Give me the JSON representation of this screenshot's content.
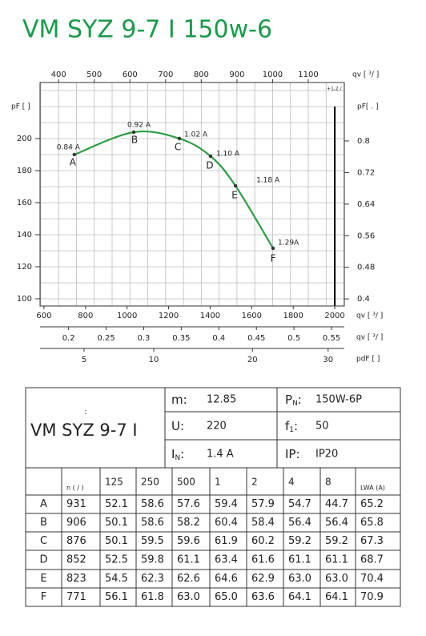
{
  "header": {
    "title": "VM SYZ 9-7 I 150w-6"
  },
  "chart_data": {
    "type": "line",
    "x": [
      746,
      1032,
      1252,
      1402,
      1522,
      1703
    ],
    "series": [
      {
        "name": "pF",
        "color": "#2e9e44",
        "values": [
          190,
          204,
          200,
          189,
          170.5,
          131.5
        ]
      }
    ],
    "point_labels": [
      "A",
      "B",
      "C",
      "D",
      "E",
      "F"
    ],
    "annotations": [
      "0.84 A",
      "0.92 A",
      "1.02 A",
      "1.10 A",
      "1.18 A",
      "1.29A"
    ],
    "xlim": [
      581,
      2046
    ],
    "xticks": [
      600,
      800,
      1000,
      1200,
      1400,
      1600,
      1800,
      2000
    ],
    "xlabel": "qv [ ³/ ]",
    "x2lim": [
      348,
      1201
    ],
    "x2ticks": [
      400,
      500,
      600,
      700,
      800,
      900,
      1000,
      1100
    ],
    "x2label": "qv [ ³/ ]",
    "x2grid": [
      350,
      400,
      450,
      500,
      550,
      600,
      650,
      700,
      750,
      800,
      850,
      900,
      950,
      1000,
      1050,
      1100,
      1150,
      1200
    ],
    "x3lim": [
      0.162,
      0.567
    ],
    "x3ticks": [
      0.2,
      0.25,
      0.3,
      0.35,
      0.4,
      0.45,
      0.5,
      0.55
    ],
    "x3label": "qv [ ³/ ]",
    "x4lim": [
      2.73,
      32.4
    ],
    "x4scale": "sqrt",
    "x4ticks": [
      5,
      10,
      20,
      30
    ],
    "x4label": "pdF [ ]",
    "ylim": [
      95.5,
      235
    ],
    "yticks": [
      100,
      120,
      140,
      160,
      180,
      200
    ],
    "ylabel": "pF [ ]",
    "ygrid": [
      100,
      110,
      120,
      130,
      140,
      150,
      160,
      170,
      180,
      190,
      200,
      210,
      220,
      230
    ],
    "y2lim": [
      0.382,
      0.948
    ],
    "y2ticks": [
      0.4,
      0.48,
      0.56,
      0.64,
      0.72,
      0.8
    ],
    "y2label": "pF[ . ]",
    "limit_x": 2000,
    "limit_note": "+1,2 /",
    "grid": true
  },
  "specs": {
    "name_note": ":",
    "name": "VM SYZ 9-7 I",
    "items": [
      {
        "label": "m",
        "sub": "",
        "colon": ":",
        "value": "12.85"
      },
      {
        "label": "U",
        "sub": "",
        "colon": ":",
        "value": "220"
      },
      {
        "label": "I",
        "sub": "N",
        "colon": ":",
        "value": "1.4  A"
      },
      {
        "label": "P",
        "sub": "N",
        "colon": ":",
        "value": "150W-6P"
      },
      {
        "label": "f",
        "sub": "1",
        "colon": ":",
        "value": "50"
      },
      {
        "label": "IP",
        "sub": "",
        "colon": ":",
        "value": "IP20"
      }
    ]
  },
  "table": {
    "header": [
      "",
      "n ( / )",
      "125",
      "250",
      "500",
      "1",
      "2",
      "4",
      "8",
      "LWA   (A)"
    ],
    "rows": [
      [
        "A",
        "931",
        "52.1",
        "58.6",
        "57.6",
        "59.4",
        "57.9",
        "54.7",
        "44.7",
        "65.2"
      ],
      [
        "B",
        "906",
        "50.1",
        "58.6",
        "58.2",
        "60.4",
        "58.4",
        "56.4",
        "56.4",
        "65.8"
      ],
      [
        "C",
        "876",
        "50.1",
        "59.5",
        "59.6",
        "61.9",
        "60.2",
        "59.2",
        "59.2",
        "67.3"
      ],
      [
        "D",
        "852",
        "52.5",
        "59.8",
        "61.1",
        "63.4",
        "61.6",
        "61.1",
        "61.1",
        "68.7"
      ],
      [
        "E",
        "823",
        "54.5",
        "62.3",
        "62.6",
        "64.6",
        "62.9",
        "63.0",
        "63.0",
        "70.4"
      ],
      [
        "F",
        "771",
        "56.1",
        "61.8",
        "63.0",
        "65.0",
        "63.6",
        "64.1",
        "64.1",
        "70.9"
      ]
    ]
  }
}
